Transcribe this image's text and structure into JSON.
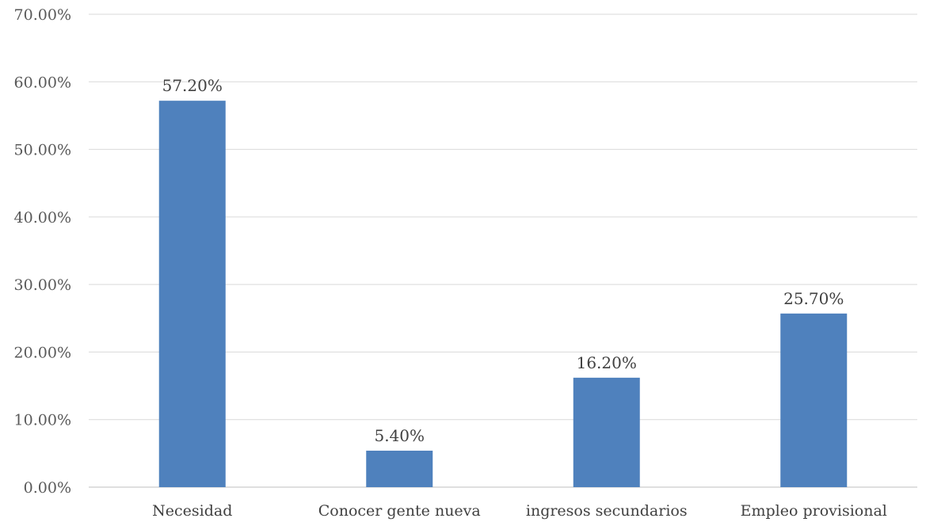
{
  "chart_data": {
    "type": "bar",
    "categories": [
      "Necesidad",
      "Conocer gente nueva",
      "ingresos secundarios",
      "Empleo provisional"
    ],
    "values": [
      57.2,
      5.4,
      16.2,
      25.7
    ],
    "value_labels": [
      "57.20%",
      "5.40%",
      "16.20%",
      "25.70%"
    ],
    "ylim": [
      0,
      70
    ],
    "yticks": [
      0,
      10,
      20,
      30,
      40,
      50,
      60,
      70
    ],
    "ytick_labels": [
      "0.00%",
      "10.00%",
      "20.00%",
      "30.00%",
      "40.00%",
      "50.00%",
      "60.00%",
      "70.00%"
    ],
    "bar_color": "#4f81bd",
    "grid": true,
    "legend": "none"
  }
}
